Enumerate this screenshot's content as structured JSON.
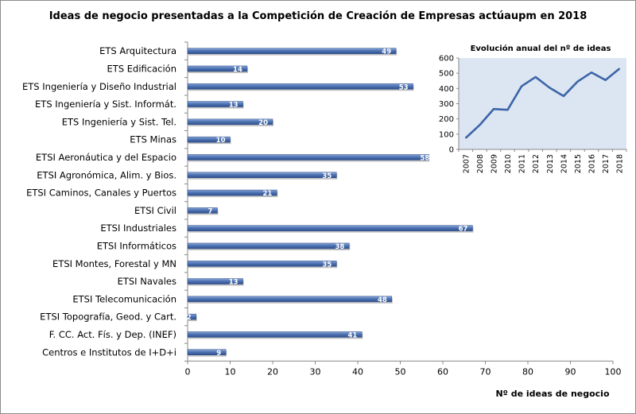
{
  "title": "Ideas de negocio presentadas a la Competición de Creación de Empresas actúaupm en 2018",
  "chart_data": [
    {
      "type": "bar",
      "orientation": "horizontal",
      "categories": [
        "ETS Arquitectura",
        "ETS Edificación",
        "ETS Ingeniería y Diseño Industrial",
        "ETS Ingeniería y Sist. Informát.",
        "ETS Ingeniería y Sist. Tel.",
        "ETS Minas",
        "ETSI Aeronáutica y del Espacio",
        "ETSI Agronómica, Alim. y Bios.",
        "ETSI Caminos, Canales y Puertos",
        "ETSI Civil",
        "ETSI Industriales",
        "ETSI Informáticos",
        "ETSI Montes, Forestal y MN",
        "ETSI Navales",
        "ETSI Telecomunicación",
        "ETSI Topografía, Geod. y Cart.",
        "F. CC. Act. Fís. y Dep. (INEF)",
        "Centros e Institutos de I+D+i"
      ],
      "values": [
        49,
        14,
        53,
        13,
        20,
        10,
        58,
        35,
        21,
        7,
        67,
        38,
        35,
        13,
        48,
        2,
        41,
        9
      ],
      "xlabel": "Nº de ideas  de negocio",
      "xlim": [
        0,
        100
      ],
      "xticks": [
        0,
        10,
        20,
        30,
        40,
        50,
        60,
        70,
        80,
        90,
        100
      ],
      "bar_color": "#4f74b4",
      "data_labels": "inside-end, white",
      "grid": false
    },
    {
      "type": "line",
      "title": "Evolución anual del nº de ideas",
      "x": [
        "2007",
        "2008",
        "2009",
        "2010",
        "2011",
        "2012",
        "2013",
        "2014",
        "2015",
        "2016",
        "2017",
        "2018"
      ],
      "y": [
        75,
        160,
        265,
        260,
        415,
        475,
        405,
        350,
        445,
        505,
        455,
        530
      ],
      "ylim": [
        0,
        600
      ],
      "yticks": [
        0,
        100,
        200,
        300,
        400,
        500,
        600
      ],
      "line_color": "#3c64a8",
      "background": "#dce6f2",
      "grid": false
    }
  ]
}
